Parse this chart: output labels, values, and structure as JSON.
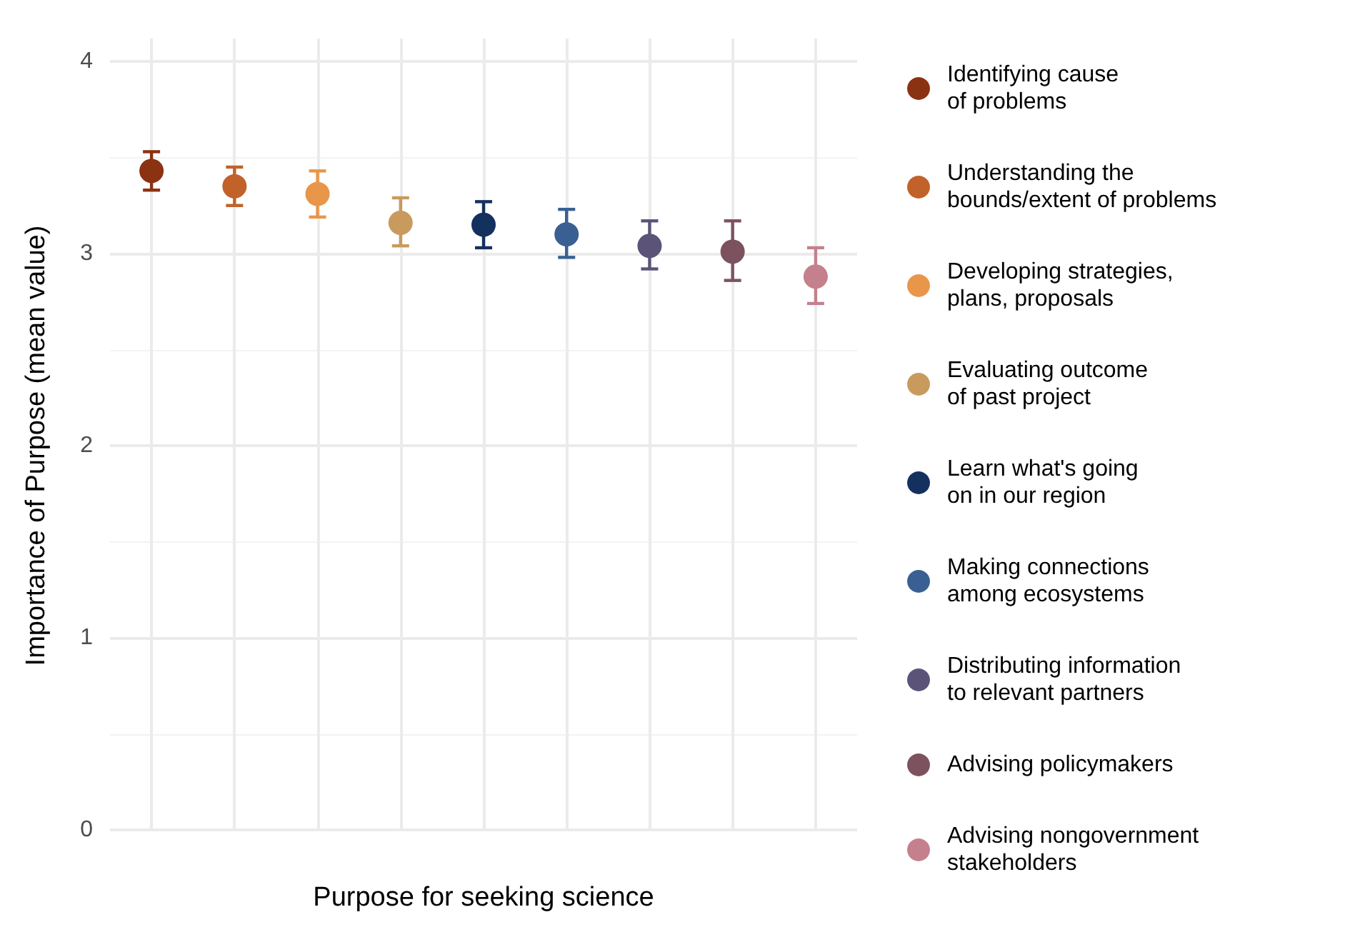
{
  "chart_data": {
    "type": "scatter",
    "xlabel": "Purpose for seeking science",
    "ylabel": "Importance of Purpose (mean value)",
    "categories": [
      null,
      null,
      null,
      null,
      null,
      null,
      null,
      null,
      null
    ],
    "series": [
      {
        "name": "Identifying cause\nof problems",
        "color": "#8b3212",
        "values": [
          3.43,
          null,
          null,
          null,
          null,
          null,
          null,
          null,
          null
        ],
        "errors": [
          [
            3.33,
            3.53
          ],
          null,
          null,
          null,
          null,
          null,
          null,
          null,
          null
        ]
      },
      {
        "name": "Understanding the\nbounds/extent of problems",
        "color": "#c0622a",
        "values": [
          null,
          3.35,
          null,
          null,
          null,
          null,
          null,
          null,
          null
        ],
        "errors": [
          null,
          [
            3.25,
            3.45
          ],
          null,
          null,
          null,
          null,
          null,
          null,
          null
        ]
      },
      {
        "name": "Developing strategies,\nplans, proposals",
        "color": "#e8964a",
        "values": [
          null,
          null,
          3.31,
          null,
          null,
          null,
          null,
          null,
          null
        ],
        "errors": [
          null,
          null,
          [
            3.19,
            3.43
          ],
          null,
          null,
          null,
          null,
          null,
          null
        ]
      },
      {
        "name": "Evaluating outcome\nof past project",
        "color": "#c99a5e",
        "values": [
          null,
          null,
          null,
          3.16,
          null,
          null,
          null,
          null,
          null
        ],
        "errors": [
          null,
          null,
          null,
          [
            3.04,
            3.29
          ],
          null,
          null,
          null,
          null,
          null
        ]
      },
      {
        "name": "Learn what's going\non in our region",
        "color": "#14305f",
        "values": [
          null,
          null,
          null,
          null,
          3.15,
          null,
          null,
          null,
          null
        ],
        "errors": [
          null,
          null,
          null,
          null,
          [
            3.03,
            3.27
          ],
          null,
          null,
          null,
          null
        ]
      },
      {
        "name": "Making connections\namong ecosystems",
        "color": "#3a5f93",
        "values": [
          null,
          null,
          null,
          null,
          null,
          3.1,
          null,
          null,
          null
        ],
        "errors": [
          null,
          null,
          null,
          null,
          null,
          [
            2.98,
            3.23
          ],
          null,
          null,
          null
        ]
      },
      {
        "name": "Distributing information\nto relevant partners",
        "color": "#5b5478",
        "values": [
          null,
          null,
          null,
          null,
          null,
          null,
          3.04,
          null,
          null
        ],
        "errors": [
          null,
          null,
          null,
          null,
          null,
          null,
          [
            2.92,
            3.17
          ],
          null,
          null
        ]
      },
      {
        "name": "Advising policymakers",
        "color": "#7c525e",
        "values": [
          null,
          null,
          null,
          null,
          null,
          null,
          null,
          3.01,
          null
        ],
        "errors": [
          null,
          null,
          null,
          null,
          null,
          null,
          null,
          [
            2.86,
            3.17
          ],
          null
        ]
      },
      {
        "name": "Advising nongovernment\nstakeholders",
        "color": "#c4808c",
        "values": [
          null,
          null,
          null,
          null,
          null,
          null,
          null,
          null,
          2.88
        ],
        "errors": [
          null,
          null,
          null,
          null,
          null,
          null,
          null,
          null,
          [
            2.74,
            3.03
          ]
        ]
      }
    ],
    "ylim": [
      0,
      4
    ],
    "yticks": [
      0,
      1,
      2,
      3,
      4
    ],
    "grid": true,
    "legend": "right",
    "marker": "circle",
    "tick_labels": "y"
  }
}
